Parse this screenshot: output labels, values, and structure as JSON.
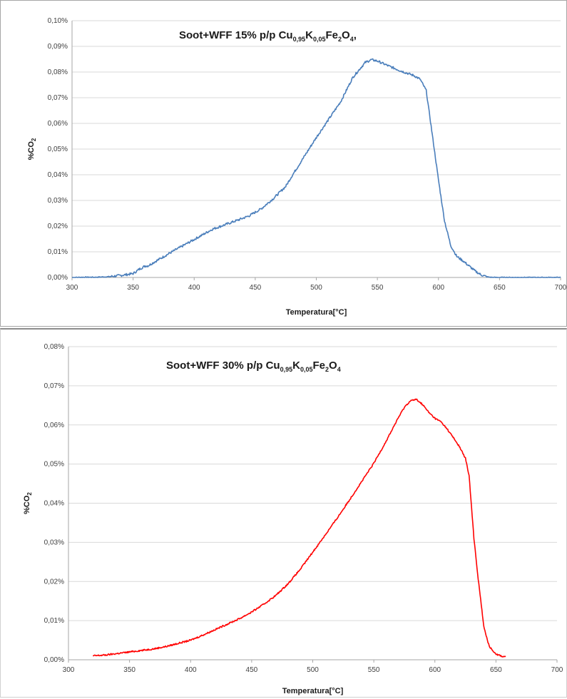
{
  "chart_data": [
    {
      "type": "line",
      "title_parts": [
        "Soot+WFF 15% p/p Cu",
        "0,95",
        "K",
        "0,05",
        "Fe",
        "2",
        "O",
        "4",
        ","
      ],
      "xlabel": "Temperatura[°C]",
      "ylabel_parts": [
        "%CO",
        "2"
      ],
      "xlim": [
        300,
        700
      ],
      "ylim": [
        0,
        0.1
      ],
      "x_ticks": [
        "300",
        "350",
        "400",
        "450",
        "500",
        "550",
        "600",
        "650",
        "700"
      ],
      "y_ticks": [
        "0,00%",
        "0,01%",
        "0,02%",
        "0,03%",
        "0,04%",
        "0,05%",
        "0,06%",
        "0,07%",
        "0,08%",
        "0,09%",
        "0,10%"
      ],
      "grid": true,
      "legend": "none",
      "color": "#4a7ebb",
      "series": [
        {
          "x": [
            300,
            310,
            320,
            330,
            340,
            350,
            355,
            360,
            362,
            380,
            400,
            415,
            425,
            435,
            445,
            455,
            465,
            475,
            480,
            500,
            520,
            530,
            540,
            545,
            550,
            560,
            570,
            580,
            585,
            590,
            595,
            600,
            605,
            610,
            615,
            620,
            625,
            630,
            635,
            640,
            645,
            650,
            700
          ],
          "y": [
            0.0,
            0.0001,
            0.0001,
            0.0003,
            0.0008,
            0.0015,
            0.0032,
            0.0045,
            0.0045,
            0.0095,
            0.0148,
            0.0188,
            0.0205,
            0.0222,
            0.024,
            0.0268,
            0.0308,
            0.0355,
            0.0395,
            0.0545,
            0.0685,
            0.078,
            0.0837,
            0.0848,
            0.0843,
            0.0822,
            0.0803,
            0.0786,
            0.0772,
            0.0728,
            0.0555,
            0.038,
            0.022,
            0.0125,
            0.0082,
            0.0065,
            0.0045,
            0.0025,
            0.001,
            0.0002,
            0.0,
            0.0,
            0.0
          ]
        }
      ]
    },
    {
      "type": "line",
      "title_parts": [
        "Soot+WFF 30% p/p Cu",
        "0,95",
        "K",
        "0,05",
        "Fe",
        "2",
        "O",
        "4",
        ""
      ],
      "xlabel": "Temperatura[°C]",
      "ylabel_parts": [
        "%CO",
        "2"
      ],
      "xlim": [
        300,
        700
      ],
      "ylim": [
        0,
        0.08
      ],
      "x_ticks": [
        "300",
        "350",
        "400",
        "450",
        "500",
        "550",
        "600",
        "650",
        "700"
      ],
      "y_ticks": [
        "0,00%",
        "0,01%",
        "0,02%",
        "0,03%",
        "0,04%",
        "0,05%",
        "0,06%",
        "0,07%",
        "0,08%"
      ],
      "grid": true,
      "legend": "none",
      "color": "#ff0000",
      "series": [
        {
          "x": [
            320,
            330,
            340,
            350,
            360,
            370,
            380,
            390,
            400,
            410,
            420,
            430,
            440,
            450,
            460,
            470,
            480,
            490,
            500,
            510,
            520,
            530,
            540,
            550,
            560,
            570,
            575,
            580,
            585,
            590,
            595,
            600,
            605,
            610,
            615,
            620,
            625,
            628,
            630,
            632,
            635,
            638,
            640,
            643,
            645,
            650,
            655,
            658
          ],
          "y": [
            0.001,
            0.0012,
            0.0016,
            0.002,
            0.0024,
            0.0028,
            0.0034,
            0.0042,
            0.005,
            0.0063,
            0.0077,
            0.0091,
            0.0105,
            0.0122,
            0.0142,
            0.0165,
            0.0195,
            0.0232,
            0.0275,
            0.0318,
            0.0362,
            0.0408,
            0.0455,
            0.0502,
            0.0558,
            0.0618,
            0.0645,
            0.0662,
            0.0665,
            0.0652,
            0.0632,
            0.0617,
            0.0608,
            0.059,
            0.0568,
            0.0545,
            0.0515,
            0.047,
            0.039,
            0.031,
            0.022,
            0.014,
            0.0085,
            0.005,
            0.0032,
            0.0015,
            0.0009,
            0.0008
          ]
        }
      ]
    }
  ]
}
